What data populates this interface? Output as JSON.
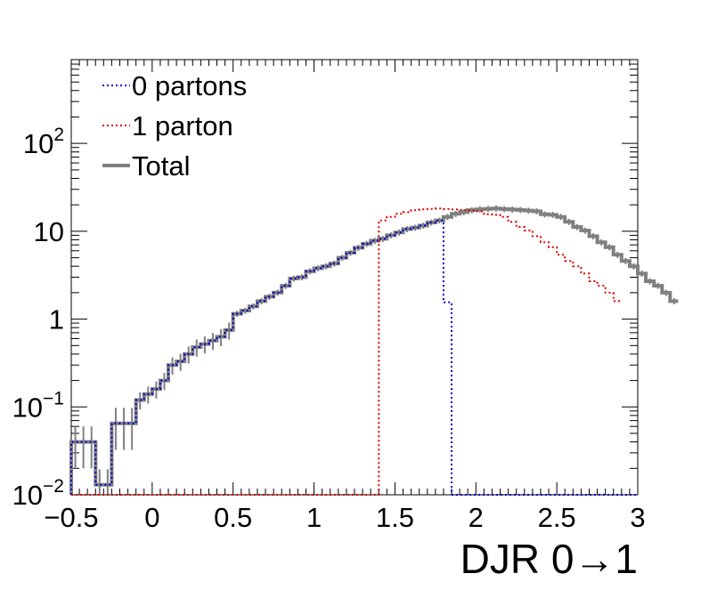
{
  "chart_data": {
    "type": "line",
    "xlabel": "DJR 0→1",
    "x_axis": {
      "range": [
        -0.5,
        3.0
      ],
      "tick_labels": [
        "−0.5",
        "0",
        "0.5",
        "1",
        "1.5",
        "2",
        "2.5",
        "3"
      ],
      "tick_values": [
        -0.5,
        0,
        0.5,
        1,
        1.5,
        2,
        2.5,
        3
      ]
    },
    "y_axis": {
      "scale": "log",
      "range": [
        0.01,
        900
      ],
      "tick_values": [
        0.01,
        0.1,
        1,
        10,
        100
      ],
      "tick_labels": [
        {
          "base": "10",
          "exp": "−2"
        },
        {
          "base": "10",
          "exp": "−1"
        },
        {
          "base": "1",
          "exp": ""
        },
        {
          "base": "10",
          "exp": ""
        },
        {
          "base": "10",
          "exp": "2"
        }
      ]
    },
    "grid": false,
    "legend": {
      "placement": "top-left",
      "entries": [
        {
          "label": "0 partons",
          "color": "#0000cc",
          "style": "dotted"
        },
        {
          "label": "1 parton",
          "color": "#dd0000",
          "style": "dotted"
        },
        {
          "label": "Total",
          "color": "#808080",
          "style": "solid"
        }
      ]
    },
    "bin_edges": [
      -0.5,
      3.0
    ],
    "bin_width": 0.05,
    "series": [
      {
        "name": "0 partons",
        "color": "#0000cc",
        "values": [
          0.04,
          0.04,
          0.04,
          0.013,
          0.013,
          0.065,
          0.065,
          0.065,
          0.12,
          0.14,
          0.16,
          0.2,
          0.3,
          0.33,
          0.4,
          0.48,
          0.52,
          0.57,
          0.63,
          0.75,
          1.15,
          1.25,
          1.4,
          1.6,
          1.8,
          2.0,
          2.4,
          2.9,
          3.0,
          3.5,
          3.8,
          4.0,
          4.3,
          5.0,
          5.7,
          6.5,
          7.2,
          7.8,
          8.2,
          9.0,
          9.7,
          10.6,
          11.0,
          11.6,
          12.6,
          13.3,
          1.55,
          0.009
        ]
      },
      {
        "name": "1 parton",
        "color": "#dd0000",
        "x_start": 1.4,
        "values": [
          13.3,
          14.6,
          15.8,
          16.5,
          17.4,
          17.8,
          18.0,
          18.2,
          17.9,
          17.7,
          17.5,
          17.2,
          16.9,
          15.6,
          15.4,
          14.6,
          12.8,
          11.2,
          10.2,
          8.8,
          7.5,
          6.6,
          5.4,
          4.6,
          4.0,
          3.3,
          2.7,
          2.4,
          2.0,
          1.6
        ]
      },
      {
        "name": "Total",
        "color": "#808080",
        "values": [
          0.04,
          0.04,
          0.04,
          0.013,
          0.013,
          0.065,
          0.065,
          0.065,
          0.12,
          0.14,
          0.16,
          0.2,
          0.3,
          0.33,
          0.4,
          0.48,
          0.52,
          0.57,
          0.63,
          0.75,
          1.15,
          1.25,
          1.4,
          1.6,
          1.8,
          2.0,
          2.4,
          2.9,
          3.0,
          3.5,
          3.8,
          4.0,
          4.3,
          5.0,
          5.7,
          6.5,
          7.2,
          7.8,
          8.2,
          9.0,
          9.7,
          10.6,
          11.0,
          11.6,
          12.6,
          13.3,
          14.6,
          15.8,
          16.5,
          17.4,
          17.8,
          18.0,
          18.2,
          17.9,
          17.7,
          17.5,
          17.2,
          16.9,
          15.6,
          15.4,
          14.6,
          12.8,
          11.2,
          10.2,
          8.8,
          7.5,
          6.6,
          5.4,
          4.6,
          4.0,
          3.3,
          2.7,
          2.4,
          2.0,
          1.6
        ]
      }
    ]
  }
}
